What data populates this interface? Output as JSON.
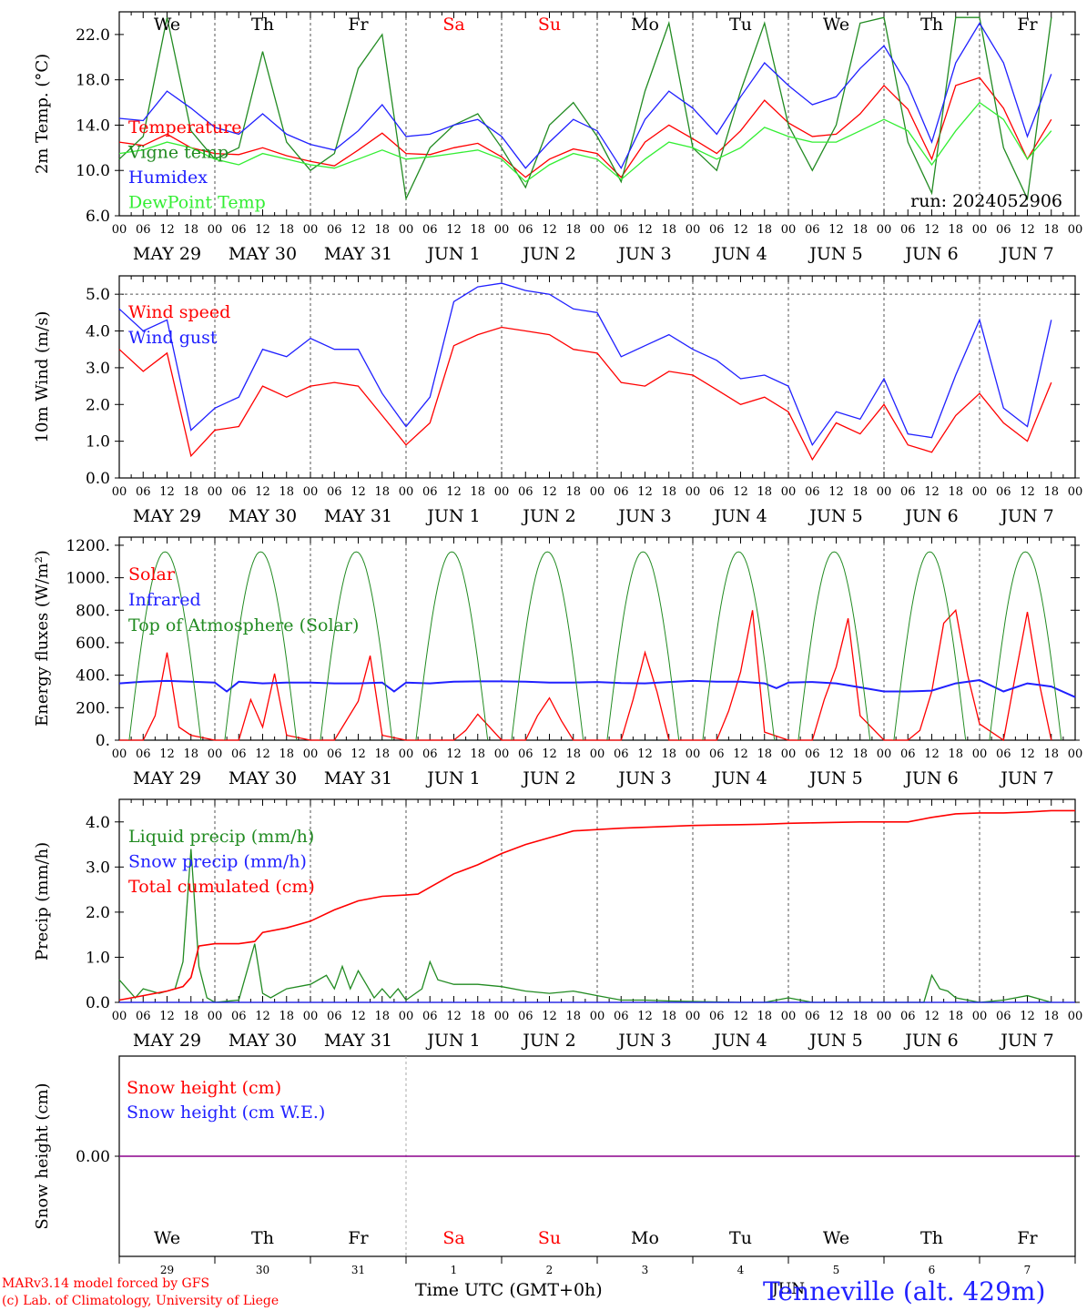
{
  "days": {
    "weekday": [
      "We",
      "Th",
      "Fr",
      "Sa",
      "Su",
      "Mo",
      "Tu",
      "We",
      "Th",
      "Fr"
    ],
    "weekday_colors": [
      "#000000",
      "#000000",
      "#000000",
      "#ff0000",
      "#ff0000",
      "#000000",
      "#000000",
      "#000000",
      "#000000",
      "#000000"
    ],
    "date_labels": [
      "MAY 29",
      "MAY 30",
      "MAY 31",
      "JUN  1",
      "JUN  2",
      "JUN  3",
      "JUN  4",
      "JUN  5",
      "JUN  6",
      "JUN  7"
    ],
    "day_numbers": [
      "29",
      "30",
      "31",
      "1",
      "2",
      "3",
      "4",
      "5",
      "6",
      "7"
    ],
    "hour_ticks": [
      "00",
      "06",
      "12",
      "18"
    ],
    "final_tick": "00"
  },
  "footer": {
    "model_line": "MARv3.14 model forced by GFS",
    "lab_line": "(c) Lab. of Climatology, University of Liege",
    "time_label": "Time UTC (GMT+0h)",
    "month_label": "JUN",
    "station": "Tenneville (alt. 429m)"
  },
  "colors": {
    "red": "#ff0000",
    "green": "#228b22",
    "blue": "#2020ff",
    "lightgreen": "#33ee33",
    "purple": "#8b008b"
  },
  "chart_data": [
    {
      "type": "line",
      "ylabel": "2m Temp. (°C)",
      "ylim": [
        6,
        24
      ],
      "yticks": [
        "6.0",
        "10.0",
        "14.0",
        "18.0",
        "22.0"
      ],
      "annotation": "run: 2024052906",
      "x_unit": "hours since MAY 29 00 UTC",
      "series": [
        {
          "name": "Temperature",
          "color": "red",
          "x": [
            0,
            6,
            12,
            18,
            24,
            30,
            36,
            42,
            48,
            54,
            60,
            66,
            72,
            78,
            84,
            90,
            96,
            102,
            108,
            114,
            120,
            126,
            132,
            138,
            144,
            150,
            156,
            162,
            168,
            174,
            180,
            186,
            192,
            198,
            204,
            210,
            216,
            222,
            228,
            234
          ],
          "y": [
            12.5,
            12.2,
            13.2,
            12.0,
            11.5,
            11.4,
            12.0,
            11.3,
            10.8,
            10.4,
            11.8,
            13.3,
            11.5,
            11.4,
            12.0,
            12.4,
            11.2,
            9.4,
            11.0,
            11.9,
            11.5,
            9.4,
            12.5,
            14.0,
            12.8,
            11.5,
            13.5,
            16.2,
            14.2,
            13.0,
            13.2,
            15.0,
            17.5,
            15.4,
            11.0,
            17.5,
            18.2,
            15.5,
            11.0,
            14.5
          ]
        },
        {
          "name": "Vigne temp",
          "color": "green",
          "x": [
            0,
            6,
            12,
            18,
            24,
            30,
            36,
            42,
            48,
            54,
            60,
            66,
            72,
            78,
            84,
            90,
            96,
            102,
            108,
            114,
            120,
            126,
            132,
            138,
            144,
            150,
            156,
            162,
            168,
            174,
            180,
            186,
            192,
            198,
            204,
            210,
            216,
            222,
            228,
            234
          ],
          "y": [
            11.0,
            13.0,
            23.5,
            13.5,
            11.0,
            12.0,
            20.5,
            12.5,
            10.0,
            11.5,
            19.0,
            22.0,
            7.5,
            12.0,
            14.0,
            15.0,
            12.0,
            8.5,
            14.0,
            16.0,
            13.0,
            9.0,
            17.0,
            23.0,
            12.0,
            10.0,
            17.0,
            23.0,
            14.0,
            10.0,
            14.0,
            23.0,
            23.5,
            12.5,
            8.0,
            23.5,
            23.5,
            12.0,
            7.5,
            23.5
          ]
        },
        {
          "name": "Humidex",
          "color": "blue",
          "x": [
            0,
            6,
            12,
            18,
            24,
            30,
            36,
            42,
            48,
            54,
            60,
            66,
            72,
            78,
            84,
            90,
            96,
            102,
            108,
            114,
            120,
            126,
            132,
            138,
            144,
            150,
            156,
            162,
            168,
            174,
            180,
            186,
            192,
            198,
            204,
            210,
            216,
            222,
            228,
            234
          ],
          "y": [
            14.6,
            14.4,
            17.0,
            15.5,
            13.8,
            13.2,
            15.0,
            13.2,
            12.3,
            11.8,
            13.5,
            15.8,
            13.0,
            13.2,
            14.0,
            14.5,
            13.0,
            10.2,
            12.5,
            14.5,
            13.5,
            10.2,
            14.5,
            17.0,
            15.5,
            13.2,
            16.5,
            19.5,
            17.5,
            15.8,
            16.5,
            19.0,
            21.0,
            17.5,
            12.5,
            19.5,
            23.0,
            19.5,
            13.0,
            18.5
          ]
        },
        {
          "name": "DewPoint Temp",
          "color": "lightgreen",
          "x": [
            0,
            6,
            12,
            18,
            24,
            30,
            36,
            42,
            48,
            54,
            60,
            66,
            72,
            78,
            84,
            90,
            96,
            102,
            108,
            114,
            120,
            126,
            132,
            138,
            144,
            150,
            156,
            162,
            168,
            174,
            180,
            186,
            192,
            198,
            204,
            210,
            216,
            222,
            228,
            234
          ],
          "y": [
            11.5,
            11.8,
            12.5,
            12.0,
            11.0,
            10.5,
            11.5,
            11.0,
            10.5,
            10.2,
            11.0,
            11.8,
            11.0,
            11.2,
            11.5,
            11.8,
            11.0,
            9.0,
            10.5,
            11.5,
            11.0,
            9.2,
            11.0,
            12.5,
            12.0,
            11.0,
            12.0,
            13.8,
            13.0,
            12.5,
            12.5,
            13.5,
            14.5,
            13.5,
            10.5,
            13.5,
            16.0,
            14.5,
            11.0,
            13.5
          ]
        }
      ]
    },
    {
      "type": "line",
      "ylabel": "10m Wind (m/s)",
      "ylim": [
        0,
        5.5
      ],
      "yticks": [
        "0.0",
        "1.0",
        "2.0",
        "3.0",
        "4.0",
        "5.0"
      ],
      "series": [
        {
          "name": "Wind speed",
          "color": "red",
          "x": [
            0,
            6,
            12,
            18,
            24,
            30,
            36,
            42,
            48,
            54,
            60,
            66,
            72,
            78,
            84,
            90,
            96,
            102,
            108,
            114,
            120,
            126,
            132,
            138,
            144,
            150,
            156,
            162,
            168,
            174,
            180,
            186,
            192,
            198,
            204,
            210,
            216,
            222,
            228,
            234
          ],
          "y": [
            3.5,
            2.9,
            3.4,
            0.6,
            1.3,
            1.4,
            2.5,
            2.2,
            2.5,
            2.6,
            2.5,
            1.7,
            0.9,
            1.5,
            3.6,
            3.9,
            4.1,
            4.0,
            3.9,
            3.5,
            3.4,
            2.6,
            2.5,
            2.9,
            2.8,
            2.4,
            2.0,
            2.2,
            1.8,
            0.5,
            1.5,
            1.2,
            2.0,
            0.9,
            0.7,
            1.7,
            2.3,
            1.5,
            1.0,
            2.6
          ]
        },
        {
          "name": "Wind gust",
          "color": "blue",
          "x": [
            0,
            6,
            12,
            18,
            24,
            30,
            36,
            42,
            48,
            54,
            60,
            66,
            72,
            78,
            84,
            90,
            96,
            102,
            108,
            114,
            120,
            126,
            132,
            138,
            144,
            150,
            156,
            162,
            168,
            174,
            180,
            186,
            192,
            198,
            204,
            210,
            216,
            222,
            228,
            234
          ],
          "y": [
            4.6,
            4.0,
            4.3,
            1.3,
            1.9,
            2.2,
            3.5,
            3.3,
            3.8,
            3.5,
            3.5,
            2.3,
            1.4,
            2.2,
            4.8,
            5.2,
            5.3,
            5.1,
            5.0,
            4.6,
            4.5,
            3.3,
            3.6,
            3.9,
            3.5,
            3.2,
            2.7,
            2.8,
            2.5,
            0.9,
            1.8,
            1.6,
            2.7,
            1.2,
            1.1,
            2.8,
            4.3,
            1.9,
            1.4,
            4.3
          ]
        }
      ]
    },
    {
      "type": "line",
      "ylabel": "Energy fluxes (W/m²)",
      "ylim": [
        0,
        1250
      ],
      "yticks": [
        "0.",
        "200.",
        "400.",
        "600.",
        "800.",
        "1000.",
        "1200."
      ],
      "series": [
        {
          "name": "Solar",
          "color": "red",
          "x": [
            0,
            6,
            9,
            12,
            15,
            18,
            24,
            30,
            33,
            36,
            39,
            42,
            48,
            54,
            57,
            60,
            63,
            66,
            72,
            78,
            84,
            87,
            90,
            96,
            102,
            105,
            108,
            111,
            114,
            120,
            126,
            129,
            132,
            135,
            138,
            144,
            150,
            153,
            156,
            159,
            162,
            168,
            174,
            177,
            180,
            183,
            186,
            192,
            198,
            201,
            204,
            207,
            210,
            213,
            216,
            222,
            225,
            228,
            231,
            234
          ],
          "y": [
            0,
            0,
            150,
            540,
            80,
            30,
            0,
            0,
            250,
            80,
            410,
            30,
            0,
            0,
            120,
            240,
            520,
            30,
            0,
            0,
            0,
            60,
            160,
            0,
            0,
            150,
            260,
            120,
            0,
            0,
            0,
            250,
            540,
            300,
            0,
            0,
            0,
            180,
            420,
            800,
            50,
            0,
            0,
            250,
            450,
            750,
            150,
            0,
            0,
            60,
            300,
            720,
            800,
            400,
            100,
            0,
            400,
            790,
            350,
            0
          ]
        },
        {
          "name": "Infrared",
          "color": "blue",
          "x": [
            0,
            6,
            12,
            18,
            24,
            27,
            30,
            36,
            42,
            48,
            54,
            60,
            66,
            69,
            72,
            78,
            84,
            90,
            96,
            102,
            108,
            114,
            120,
            126,
            132,
            138,
            144,
            150,
            156,
            162,
            165,
            168,
            174,
            180,
            186,
            192,
            198,
            204,
            210,
            216,
            222,
            228,
            234,
            240
          ],
          "y": [
            350,
            360,
            365,
            360,
            355,
            300,
            360,
            350,
            355,
            355,
            350,
            350,
            355,
            300,
            355,
            350,
            360,
            362,
            362,
            360,
            355,
            355,
            358,
            352,
            350,
            358,
            365,
            360,
            360,
            350,
            320,
            355,
            358,
            350,
            325,
            300,
            300,
            305,
            350,
            370,
            300,
            350,
            330,
            265
          ]
        },
        {
          "name": "Top of Atmosphere (Solar)",
          "color": "green",
          "type": "daily-arc",
          "peak": 1160,
          "rise_hour": 2.5,
          "set_hour": 20.5
        }
      ]
    },
    {
      "type": "line",
      "ylabel": "Precip (mm/h)",
      "ylim": [
        0,
        4.5
      ],
      "yticks": [
        "0.0",
        "1.0",
        "2.0",
        "3.0",
        "4.0"
      ],
      "series": [
        {
          "name": "Liquid precip (mm/h)",
          "color": "green",
          "x": [
            0,
            4,
            6,
            10,
            14,
            16,
            18,
            20,
            22,
            24,
            30,
            34,
            36,
            38,
            42,
            48,
            52,
            54,
            56,
            58,
            60,
            62,
            64,
            66,
            68,
            70,
            72,
            76,
            78,
            80,
            84,
            90,
            96,
            102,
            108,
            114,
            120,
            126,
            132,
            138,
            144,
            150,
            156,
            162,
            168,
            174,
            180,
            186,
            192,
            198,
            200,
            202,
            204,
            206,
            208,
            210,
            216,
            222,
            228,
            234
          ],
          "y": [
            0.5,
            0.1,
            0.3,
            0.2,
            0.3,
            0.9,
            3.4,
            0.8,
            0.1,
            0.0,
            0.05,
            1.3,
            0.2,
            0.1,
            0.3,
            0.4,
            0.6,
            0.3,
            0.8,
            0.3,
            0.7,
            0.4,
            0.1,
            0.3,
            0.1,
            0.3,
            0.05,
            0.3,
            0.9,
            0.5,
            0.4,
            0.4,
            0.35,
            0.25,
            0.2,
            0.25,
            0.15,
            0.05,
            0.05,
            0.03,
            0.02,
            0.01,
            0.0,
            0.0,
            0.1,
            0.0,
            0.0,
            0.0,
            0.0,
            0.0,
            0.0,
            0.0,
            0.6,
            0.3,
            0.25,
            0.1,
            0.0,
            0.05,
            0.15,
            0.0
          ]
        },
        {
          "name": "Snow precip (mm/h)",
          "color": "blue",
          "x": [
            0,
            240
          ],
          "y": [
            0,
            0
          ]
        },
        {
          "name": "Total cumulated (cm)",
          "color": "red",
          "x": [
            0,
            6,
            12,
            16,
            18,
            20,
            24,
            30,
            34,
            36,
            42,
            48,
            54,
            60,
            66,
            72,
            75,
            78,
            84,
            90,
            96,
            102,
            108,
            114,
            120,
            126,
            132,
            138,
            144,
            150,
            156,
            162,
            168,
            174,
            180,
            186,
            192,
            198,
            204,
            210,
            216,
            222,
            228,
            234,
            240
          ],
          "y": [
            0.05,
            0.15,
            0.25,
            0.35,
            0.55,
            1.25,
            1.3,
            1.3,
            1.35,
            1.55,
            1.65,
            1.8,
            2.05,
            2.25,
            2.35,
            2.38,
            2.4,
            2.55,
            2.85,
            3.05,
            3.3,
            3.5,
            3.65,
            3.8,
            3.83,
            3.86,
            3.88,
            3.9,
            3.92,
            3.93,
            3.94,
            3.95,
            3.97,
            3.98,
            3.99,
            4.0,
            4.0,
            4.0,
            4.1,
            4.18,
            4.2,
            4.2,
            4.22,
            4.25,
            4.25
          ]
        }
      ]
    },
    {
      "type": "line",
      "ylabel": "Snow height (cm)",
      "ylim": [
        -1,
        1
      ],
      "yticks": [
        "0.00"
      ],
      "series": [
        {
          "name": "Snow height (cm)",
          "color": "red",
          "x": [
            0,
            240
          ],
          "y": [
            0,
            0
          ]
        },
        {
          "name": "Snow height (cm W.E.)",
          "color": "blue",
          "x": [
            0,
            240
          ],
          "y": [
            0,
            0
          ]
        }
      ]
    }
  ]
}
